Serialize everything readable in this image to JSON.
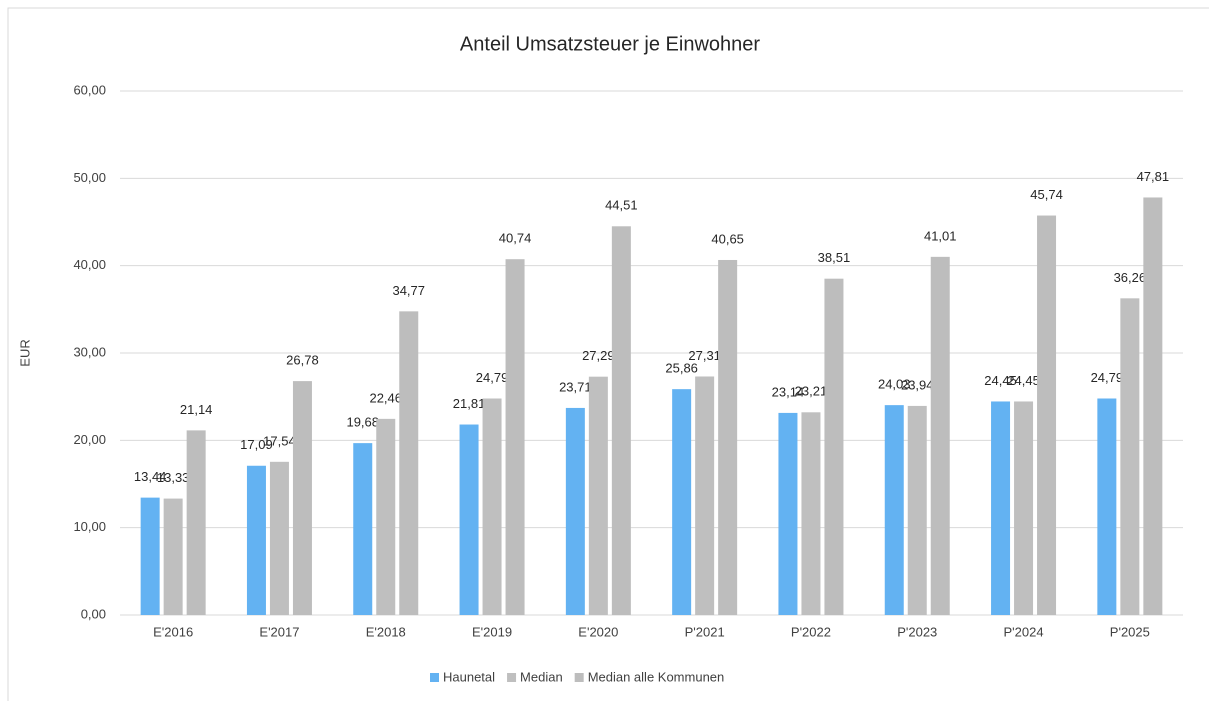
{
  "chart_data": {
    "type": "bar",
    "title": "Anteil Umsatzsteuer je Einwohner",
    "y_label": "EUR",
    "categories": [
      "E'2016",
      "E'2017",
      "E'2018",
      "E'2019",
      "E'2020",
      "P'2021",
      "P'2022",
      "P'2023",
      "P'2024",
      "P'2025"
    ],
    "series": [
      {
        "name": "Haunetal",
        "color": "#63b2f2",
        "values": [
          13.44,
          17.09,
          19.68,
          21.81,
          23.71,
          25.86,
          23.14,
          24.03,
          24.45,
          24.79
        ],
        "value_labels": [
          "13,44",
          "17,09",
          "19,68",
          "21,81",
          "23,71",
          "25,86",
          "23,14",
          "24,03",
          "24,45",
          "24,79"
        ]
      },
      {
        "name": "Median",
        "color": "#bfbfbf",
        "values": [
          13.33,
          17.54,
          22.46,
          24.79,
          27.29,
          27.31,
          23.21,
          23.94,
          24.45,
          36.26
        ],
        "value_labels": [
          "13,33",
          "17,54",
          "22,46",
          "24,79",
          "27,29",
          "27,31",
          "23,21",
          "23,94",
          "24,45",
          "36,26"
        ]
      },
      {
        "name": "Median alle Kommunen",
        "color": "#bdbdbd",
        "values": [
          21.14,
          26.78,
          34.77,
          40.74,
          44.51,
          40.65,
          38.51,
          41.01,
          45.74,
          47.81
        ],
        "value_labels": [
          "21,14",
          "26,78",
          "34,77",
          "40,74",
          "44,51",
          "40,65",
          "38,51",
          "41,01",
          "45,74",
          "47,81"
        ]
      }
    ],
    "ylim": [
      0,
      60
    ],
    "yticks": [
      {
        "value": 0,
        "label": "0,00"
      },
      {
        "value": 10,
        "label": "10,00"
      },
      {
        "value": 20,
        "label": "20,00"
      },
      {
        "value": 30,
        "label": "30,00"
      },
      {
        "value": 40,
        "label": "40,00"
      },
      {
        "value": 50,
        "label": "50,00"
      },
      {
        "value": 60,
        "label": "60,00"
      }
    ],
    "grid": true,
    "legend": "bottom"
  }
}
